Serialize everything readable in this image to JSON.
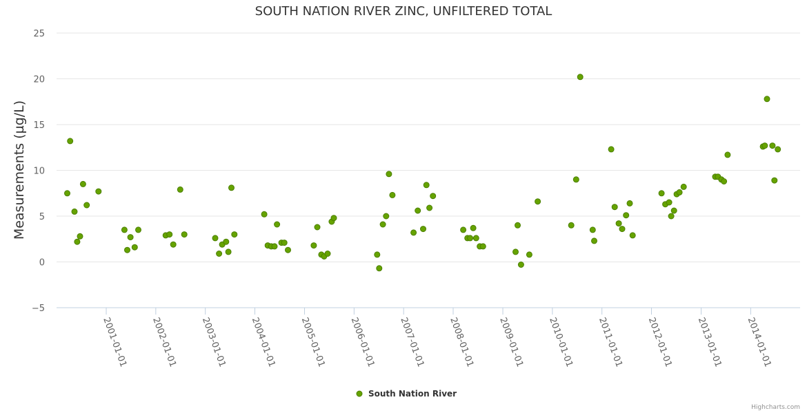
{
  "chart_data": {
    "type": "scatter",
    "title": "SOUTH NATION RIVER ZINC, UNFILTERED TOTAL",
    "xlabel": "",
    "ylabel": "Measurements (µg/L)",
    "ylim": [
      -5,
      25
    ],
    "yticks": [
      "−5",
      "0",
      "5",
      "10",
      "15",
      "20",
      "25"
    ],
    "xlim": [
      "2000-01-01",
      "2014-12-31"
    ],
    "xticks": [
      "2001-01-01",
      "2002-01-01",
      "2003-01-01",
      "2004-01-01",
      "2005-01-01",
      "2006-01-01",
      "2007-01-01",
      "2008-01-01",
      "2009-01-01",
      "2010-01-01",
      "2011-01-01",
      "2012-01-01",
      "2013-01-01",
      "2014-01-01"
    ],
    "legend": "bottom-center",
    "series": [
      {
        "name": "South Nation River",
        "color": "#66a300",
        "points": [
          {
            "x": "2000-03-20",
            "y": 7.5
          },
          {
            "x": "2000-04-10",
            "y": 13.2
          },
          {
            "x": "2000-05-12",
            "y": 5.5
          },
          {
            "x": "2000-06-01",
            "y": 2.2
          },
          {
            "x": "2000-06-22",
            "y": 2.8
          },
          {
            "x": "2000-07-14",
            "y": 8.5
          },
          {
            "x": "2000-08-10",
            "y": 6.2
          },
          {
            "x": "2000-11-05",
            "y": 7.7
          },
          {
            "x": "2001-05-15",
            "y": 3.5
          },
          {
            "x": "2001-06-05",
            "y": 1.3
          },
          {
            "x": "2001-06-28",
            "y": 2.7
          },
          {
            "x": "2001-07-30",
            "y": 1.6
          },
          {
            "x": "2001-08-25",
            "y": 3.5
          },
          {
            "x": "2002-03-15",
            "y": 2.9
          },
          {
            "x": "2002-04-12",
            "y": 3.0
          },
          {
            "x": "2002-05-10",
            "y": 1.9
          },
          {
            "x": "2002-06-30",
            "y": 7.9
          },
          {
            "x": "2002-07-30",
            "y": 3.0
          },
          {
            "x": "2003-03-15",
            "y": 2.6
          },
          {
            "x": "2003-04-12",
            "y": 0.9
          },
          {
            "x": "2003-05-05",
            "y": 1.9
          },
          {
            "x": "2003-06-03",
            "y": 2.2
          },
          {
            "x": "2003-06-20",
            "y": 1.1
          },
          {
            "x": "2003-07-12",
            "y": 8.1
          },
          {
            "x": "2003-08-03",
            "y": 3.0
          },
          {
            "x": "2004-03-10",
            "y": 5.2
          },
          {
            "x": "2004-04-05",
            "y": 1.8
          },
          {
            "x": "2004-05-01",
            "y": 1.7
          },
          {
            "x": "2004-05-25",
            "y": 1.7
          },
          {
            "x": "2004-06-12",
            "y": 4.1
          },
          {
            "x": "2004-07-15",
            "y": 2.1
          },
          {
            "x": "2004-08-05",
            "y": 2.1
          },
          {
            "x": "2004-09-01",
            "y": 1.3
          },
          {
            "x": "2005-03-10",
            "y": 1.8
          },
          {
            "x": "2005-04-05",
            "y": 3.8
          },
          {
            "x": "2005-05-05",
            "y": 0.8
          },
          {
            "x": "2005-05-25",
            "y": 0.6
          },
          {
            "x": "2005-06-20",
            "y": 0.9
          },
          {
            "x": "2005-07-20",
            "y": 4.4
          },
          {
            "x": "2005-08-05",
            "y": 4.8
          },
          {
            "x": "2006-06-20",
            "y": 0.8
          },
          {
            "x": "2006-07-05",
            "y": -0.7
          },
          {
            "x": "2006-08-01",
            "y": 4.1
          },
          {
            "x": "2006-08-25",
            "y": 5.0
          },
          {
            "x": "2006-09-15",
            "y": 9.6
          },
          {
            "x": "2006-10-10",
            "y": 7.3
          },
          {
            "x": "2007-03-15",
            "y": 3.2
          },
          {
            "x": "2007-04-15",
            "y": 5.6
          },
          {
            "x": "2007-05-25",
            "y": 3.6
          },
          {
            "x": "2007-06-18",
            "y": 8.4
          },
          {
            "x": "2007-07-10",
            "y": 5.9
          },
          {
            "x": "2007-08-05",
            "y": 7.2
          },
          {
            "x": "2008-03-15",
            "y": 3.5
          },
          {
            "x": "2008-04-15",
            "y": 2.6
          },
          {
            "x": "2008-05-05",
            "y": 2.6
          },
          {
            "x": "2008-05-28",
            "y": 3.7
          },
          {
            "x": "2008-06-18",
            "y": 2.6
          },
          {
            "x": "2008-07-15",
            "y": 1.7
          },
          {
            "x": "2008-08-08",
            "y": 1.7
          },
          {
            "x": "2009-04-05",
            "y": 1.1
          },
          {
            "x": "2009-04-20",
            "y": 4.0
          },
          {
            "x": "2009-05-15",
            "y": -0.3
          },
          {
            "x": "2009-07-15",
            "y": 0.8
          },
          {
            "x": "2009-09-15",
            "y": 6.6
          },
          {
            "x": "2010-05-20",
            "y": 4.0
          },
          {
            "x": "2010-06-25",
            "y": 9.0
          },
          {
            "x": "2010-07-25",
            "y": 20.2
          },
          {
            "x": "2010-10-25",
            "y": 3.5
          },
          {
            "x": "2010-11-05",
            "y": 2.3
          },
          {
            "x": "2011-03-10",
            "y": 12.3
          },
          {
            "x": "2011-04-05",
            "y": 6.0
          },
          {
            "x": "2011-05-05",
            "y": 4.2
          },
          {
            "x": "2011-05-30",
            "y": 3.6
          },
          {
            "x": "2011-06-28",
            "y": 5.1
          },
          {
            "x": "2011-07-25",
            "y": 6.4
          },
          {
            "x": "2011-08-15",
            "y": 2.9
          },
          {
            "x": "2012-03-15",
            "y": 7.5
          },
          {
            "x": "2012-04-12",
            "y": 6.3
          },
          {
            "x": "2012-05-10",
            "y": 6.5
          },
          {
            "x": "2012-05-25",
            "y": 5.0
          },
          {
            "x": "2012-06-15",
            "y": 5.6
          },
          {
            "x": "2012-07-05",
            "y": 7.4
          },
          {
            "x": "2012-07-25",
            "y": 7.6
          },
          {
            "x": "2012-08-25",
            "y": 8.2
          },
          {
            "x": "2013-04-15",
            "y": 9.3
          },
          {
            "x": "2013-05-05",
            "y": 9.3
          },
          {
            "x": "2013-05-30",
            "y": 9.0
          },
          {
            "x": "2013-06-18",
            "y": 8.8
          },
          {
            "x": "2013-07-15",
            "y": 11.7
          },
          {
            "x": "2014-04-01",
            "y": 12.6
          },
          {
            "x": "2014-04-15",
            "y": 12.7
          },
          {
            "x": "2014-05-01",
            "y": 17.8
          },
          {
            "x": "2014-06-10",
            "y": 12.7
          },
          {
            "x": "2014-06-25",
            "y": 8.9
          },
          {
            "x": "2014-07-20",
            "y": 12.3
          }
        ]
      }
    ]
  },
  "credits": "Highcharts.com"
}
